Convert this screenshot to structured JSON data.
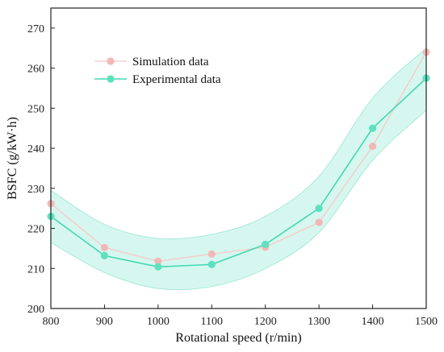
{
  "chart_data": {
    "type": "line",
    "xlabel": "Rotational speed (r/min)",
    "ylabel": "BSFC (g/kW·h)",
    "xlim": [
      800,
      1500
    ],
    "ylim": [
      200,
      275
    ],
    "x_ticks": [
      800,
      900,
      1000,
      1100,
      1200,
      1300,
      1400,
      1500
    ],
    "y_ticks": [
      200,
      210,
      220,
      230,
      240,
      250,
      260,
      270
    ],
    "grid": false,
    "legend_position": "top-left",
    "series": [
      {
        "name": "Simulation data",
        "color": "#f2b8b8",
        "line_color": "#f4cfcf",
        "x": [
          800,
          900,
          1000,
          1100,
          1200,
          1300,
          1400,
          1500
        ],
        "y": [
          226.2,
          215.2,
          211.8,
          213.6,
          215.3,
          221.5,
          240.5,
          264.0
        ]
      },
      {
        "name": "Experimental data",
        "color": "#5ee0be",
        "line_color": "#44d8b2",
        "x": [
          800,
          900,
          1000,
          1100,
          1200,
          1300,
          1400,
          1500
        ],
        "y": [
          223.0,
          213.2,
          210.4,
          211.0,
          216.0,
          225.0,
          245.0,
          257.5
        ]
      }
    ],
    "confidence_band": {
      "color": "#c8f4ea",
      "edge_color": "#a6ead8",
      "x": [
        800,
        900,
        1000,
        1100,
        1200,
        1300,
        1400,
        1500
      ],
      "upper": [
        229.5,
        221.0,
        217.5,
        218.5,
        223.0,
        233.0,
        252.5,
        265.0
      ],
      "lower": [
        216.5,
        209.0,
        205.0,
        205.5,
        210.0,
        219.0,
        237.0,
        249.5
      ]
    }
  }
}
